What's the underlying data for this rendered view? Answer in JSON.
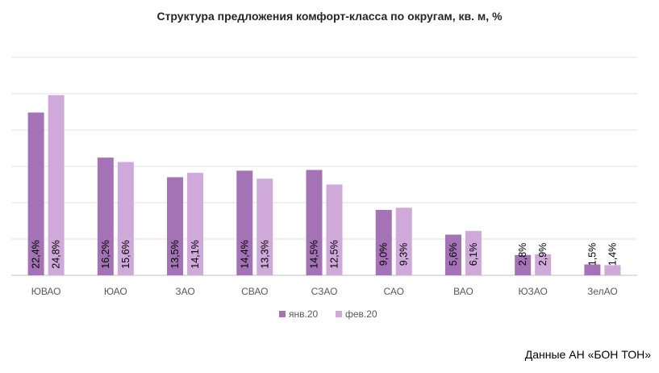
{
  "chart_data": {
    "type": "bar",
    "title": "Структура предложения комфорт-класса по округам, кв. м, %",
    "categories": [
      "ЮВАО",
      "ЮАО",
      "ЗАО",
      "СВАО",
      "СЗАО",
      "САО",
      "ВАО",
      "ЮЗАО",
      "ЗелАО"
    ],
    "series": [
      {
        "name": "янв.20",
        "color": "#A473B5",
        "values": [
          22.4,
          16.2,
          13.5,
          14.4,
          14.5,
          9.0,
          5.6,
          2.8,
          1.5
        ],
        "labels": [
          "22,4%",
          "16,2%",
          "13,5%",
          "14,4%",
          "14,5%",
          "9,0%",
          "5,6%",
          "2,8%",
          "1,5%"
        ]
      },
      {
        "name": "фев.20",
        "color": "#CFA9DA",
        "values": [
          24.8,
          15.6,
          14.1,
          13.3,
          12.5,
          9.3,
          6.1,
          2.9,
          1.4
        ],
        "labels": [
          "24,8%",
          "15,6%",
          "14,1%",
          "13,3%",
          "12,5%",
          "9,3%",
          "6,1%",
          "2,9%",
          "1,4%"
        ]
      }
    ],
    "ylim": [
      0,
      30
    ],
    "gridlines": true,
    "legend": "bottom"
  },
  "source": "Данные АН «БОН ТОН»"
}
